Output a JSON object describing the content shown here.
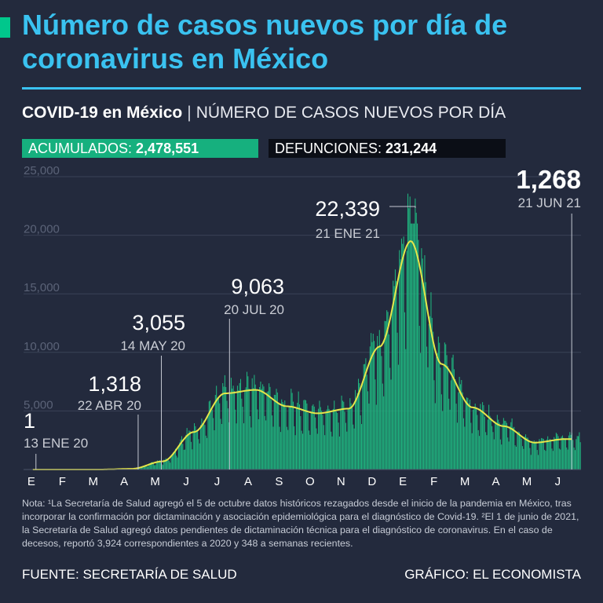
{
  "header": {
    "title": "Número de casos nuevos por día de coronavirus en México",
    "subtitle_bold": "COVID-19 en México",
    "subtitle_sep": "|",
    "subtitle_rest": "NÚMERO DE CASOS NUEVOS POR DÍA"
  },
  "stats": {
    "acumulados_label": "ACUMULADOS:",
    "acumulados_value": "2,478,551",
    "defunciones_label": "DEFUNCIONES:",
    "defunciones_value": "231,244"
  },
  "chart_data": {
    "type": "bar",
    "title": "",
    "xlabel": "",
    "ylabel": "",
    "ylim": [
      0,
      25000
    ],
    "yticks": [
      "25,000",
      "20,000",
      "15,000",
      "10,000",
      "5,000"
    ],
    "ytick_values": [
      25000,
      20000,
      15000,
      10000,
      5000
    ],
    "month_labels": [
      "E",
      "F",
      "M",
      "A",
      "M",
      "J",
      "J",
      "A",
      "S",
      "O",
      "N",
      "D",
      "E",
      "F",
      "M",
      "A",
      "M",
      "J"
    ],
    "colors": {
      "bars": "#1fb57f",
      "trend": "#e6e64a",
      "grid": "#3a4256",
      "leader": "#c4c8d2"
    },
    "series": [
      {
        "name": "",
        "type": "bar",
        "values_monthly_avg": [
          0,
          0,
          2,
          60,
          700,
          3200,
          6500,
          6800,
          5400,
          4800,
          5200,
          10500,
          19500,
          9000,
          5300,
          3700,
          2300,
          2600
        ]
      },
      {
        "name": "",
        "type": "line",
        "values_monthly_avg": [
          0,
          0,
          2,
          60,
          700,
          3200,
          6500,
          6800,
          5400,
          4800,
          5200,
          10500,
          19500,
          9000,
          5300,
          3700,
          2300,
          2600
        ]
      }
    ],
    "annotations": [
      {
        "value": "1",
        "date": "13 ENE 20",
        "data_value": 1,
        "month_index": 0.4
      },
      {
        "value": "1,318",
        "date": "22 ABR 20",
        "data_value": 1318,
        "month_index": 3.7
      },
      {
        "value": "3,055",
        "date": "14 MAY 20",
        "data_value": 3055,
        "month_index": 4.45
      },
      {
        "value": "9,063",
        "date": "20 JUL 20",
        "data_value": 9063,
        "month_index": 6.65
      },
      {
        "value": "22,339",
        "date": "21 ENE 21",
        "data_value": 22339,
        "month_index": 12.65
      },
      {
        "value": "1,268",
        "date": "21 JUN 21",
        "data_value": 1268,
        "month_index": 17.7
      }
    ]
  },
  "notes": {
    "text": "Nota: ¹La Secretaría de Salud agregó el 5 de octubre datos históricos rezagados desde el inicio de la pandemia en México, tras incorporar la confirmación por dictaminación y asociación epidemiológica para el diagnóstico de Covid-19. ²El 1 de junio de 2021, la Secretaría de Salud agregó datos pendientes de dictaminación técnica para el diagnóstico de coronavirus. En el caso de decesos, reportó 3,924 correspondientes a 2020 y 348 a semanas recientes."
  },
  "footer": {
    "source": "FUENTE: SECRETARÍA DE SALUD",
    "credit": "GRÁFICO: EL ECONOMISTA"
  }
}
